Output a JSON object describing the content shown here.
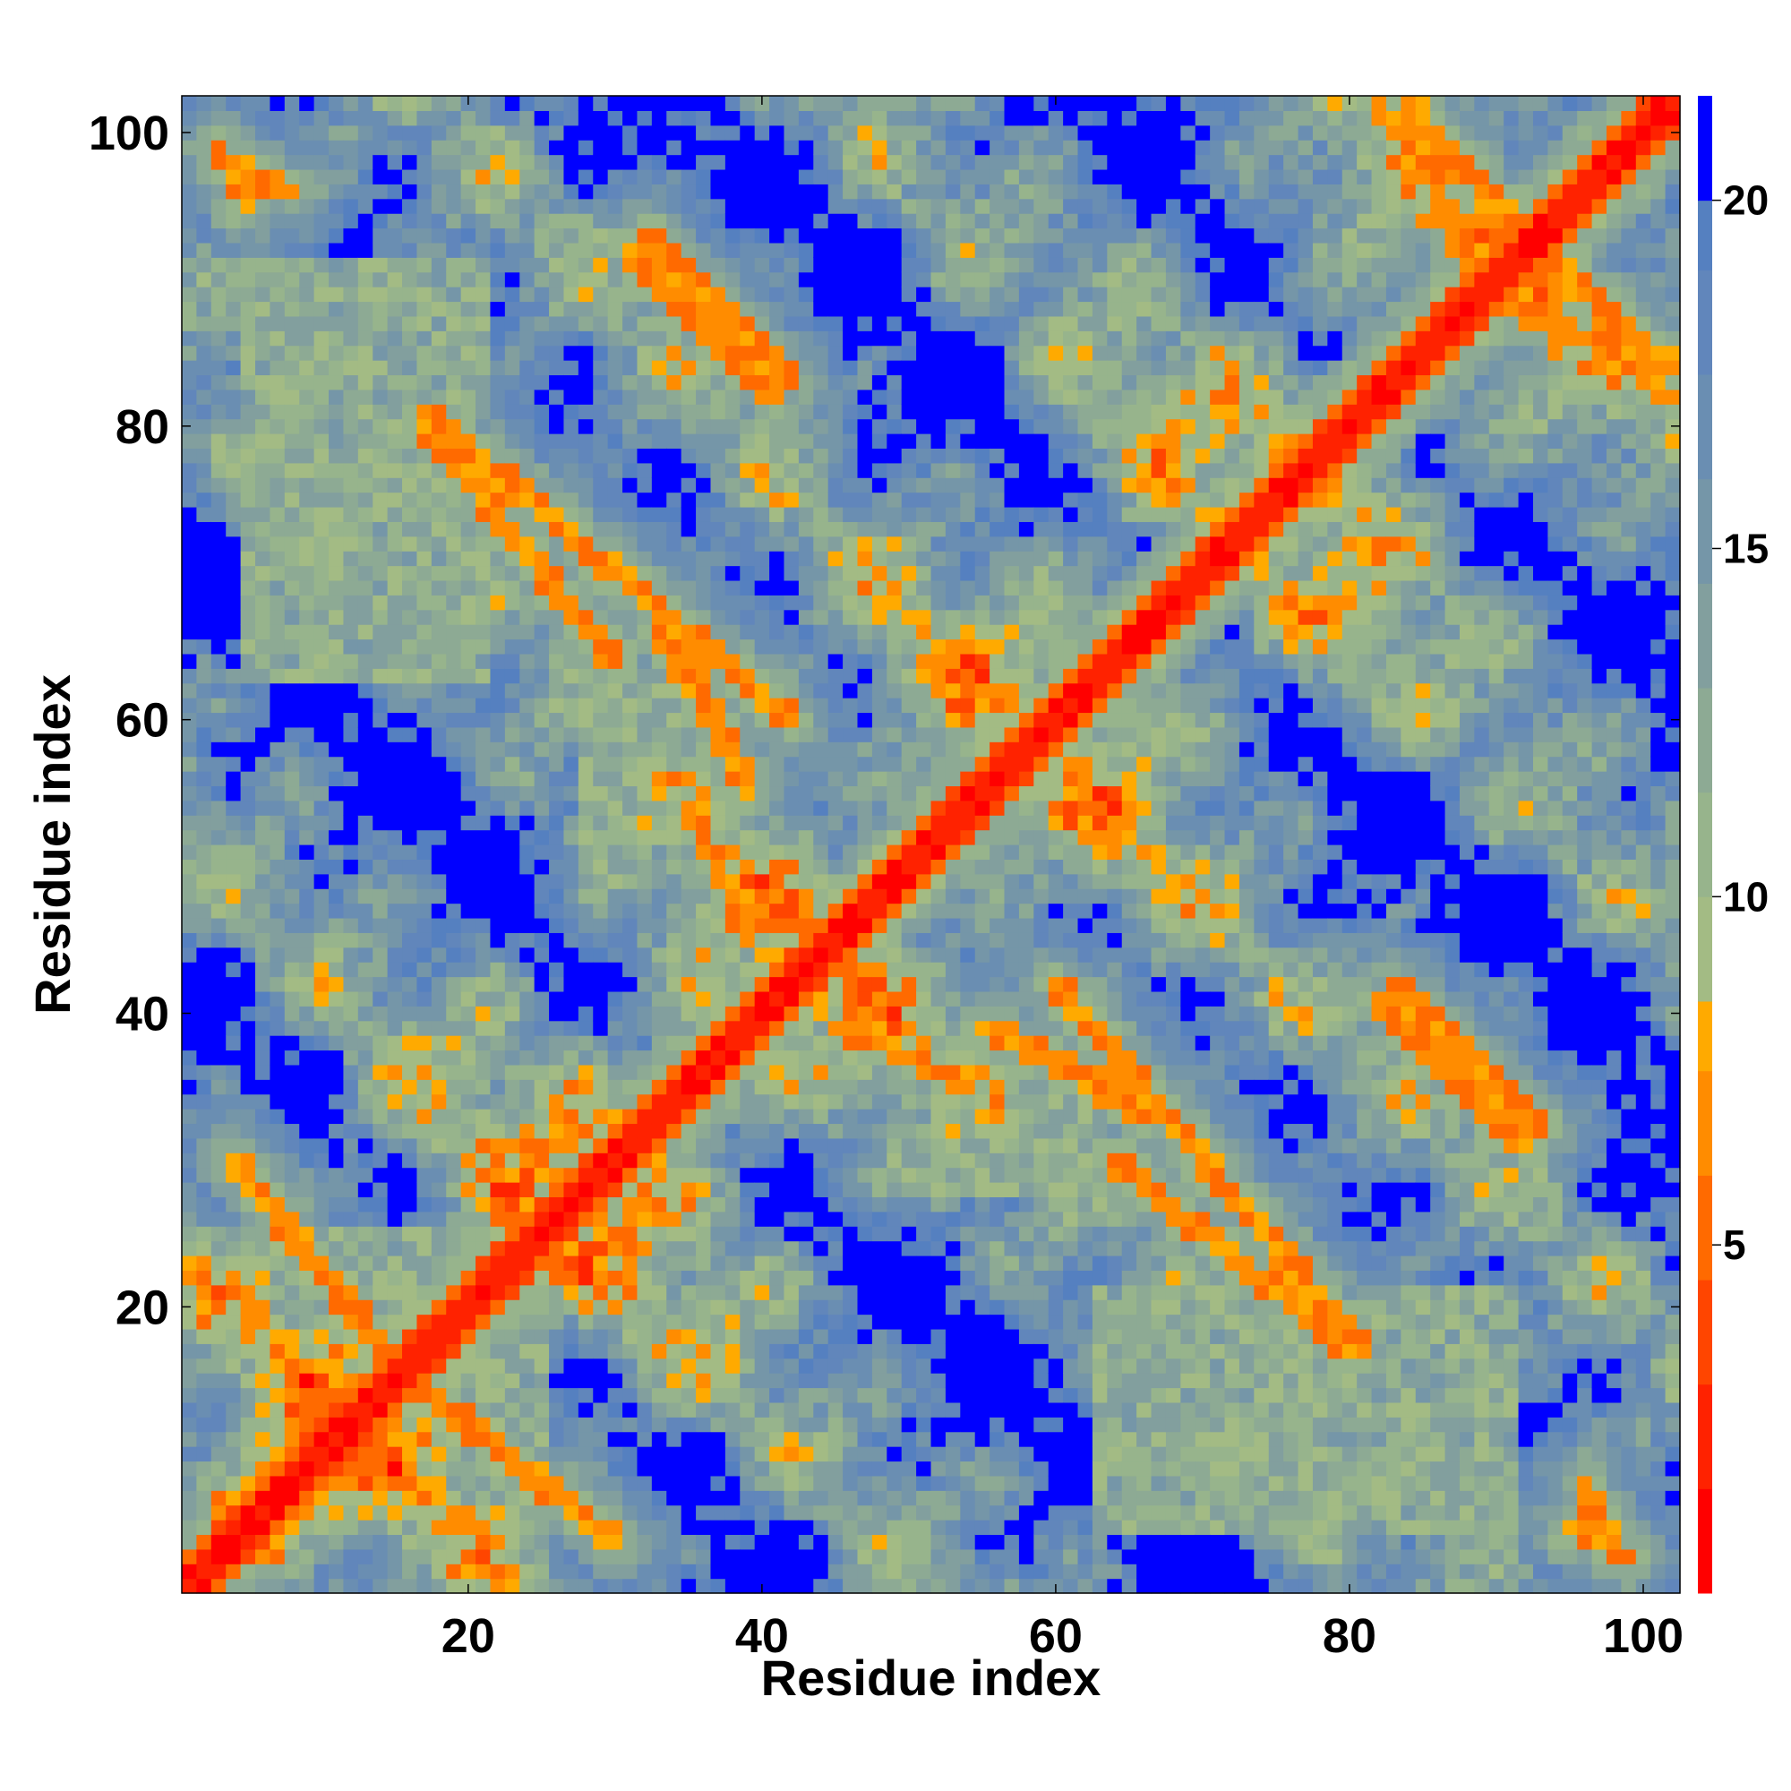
{
  "chart_data": {
    "type": "heatmap",
    "title": "",
    "xlabel": "Residue index",
    "ylabel": "Residue index",
    "n_residues": 102,
    "xlim": [
      1,
      102
    ],
    "ylim": [
      1,
      102
    ],
    "x_ticks": [
      20,
      40,
      60,
      80,
      100
    ],
    "y_ticks": [
      20,
      40,
      60,
      80,
      100
    ],
    "colorbar": {
      "range": [
        0,
        21.5
      ],
      "ticks": [
        5,
        10,
        15,
        20
      ],
      "levels": [
        {
          "max": 1.5,
          "color": "#ff0000"
        },
        {
          "max": 3.0,
          "color": "#ff2200"
        },
        {
          "max": 4.5,
          "color": "#ff4500"
        },
        {
          "max": 6.0,
          "color": "#ff6a00"
        },
        {
          "max": 7.5,
          "color": "#ff8c00"
        },
        {
          "max": 8.5,
          "color": "#ffaa00"
        },
        {
          "max": 10.0,
          "color": "#a3bb84"
        },
        {
          "max": 11.5,
          "color": "#97b48c"
        },
        {
          "max": 13.0,
          "color": "#8daa94"
        },
        {
          "max": 14.5,
          "color": "#829f9e"
        },
        {
          "max": 16.0,
          "color": "#7596a8"
        },
        {
          "max": 17.5,
          "color": "#6a8eb2"
        },
        {
          "max": 19.0,
          "color": "#6186bb"
        },
        {
          "max": 20.0,
          "color": "#5580c0"
        },
        {
          "max": 99.0,
          "color": "#0000ff"
        }
      ]
    },
    "contact_bands": [
      {
        "x": [
          3,
          29
        ],
        "y": [
          6,
          29
        ]
      },
      {
        "x": [
          15,
          30
        ],
        "y": [
          16,
          4
        ]
      },
      {
        "x": [
          17,
          42
        ],
        "y": [
          81,
          60
        ]
      },
      {
        "x": [
          32,
          42
        ],
        "y": [
          93,
          83
        ]
      },
      {
        "x": [
          35,
          39
        ],
        "y": [
          64,
          55
        ]
      },
      {
        "x": [
          46,
          54
        ],
        "y": [
          39,
          35
        ]
      },
      {
        "x": [
          56,
          66
        ],
        "y": [
          39,
          33
        ]
      },
      {
        "x": [
          64,
          80
        ],
        "y": [
          30,
          17
        ]
      },
      {
        "x": [
          82,
          92
        ],
        "y": [
          41,
          31
        ]
      },
      {
        "x": [
          84,
          93
        ],
        "y": [
          102,
          92
        ]
      },
      {
        "x": [
          93,
          102
        ],
        "y": [
          88,
          82
        ]
      },
      {
        "x": [
          3,
          8
        ],
        "y": [
          98,
          96
        ]
      },
      {
        "x": [
          95,
          99
        ],
        "y": [
          5,
          3
        ]
      }
    ],
    "compact_blocks": [
      {
        "x": [
          5,
          21
        ],
        "y": [
          11,
          25
        ]
      },
      {
        "x": [
          5,
          21
        ],
        "y": [
          63,
          91
        ]
      },
      {
        "x": [
          28,
          34
        ],
        "y": [
          52,
          62
        ]
      }
    ]
  }
}
